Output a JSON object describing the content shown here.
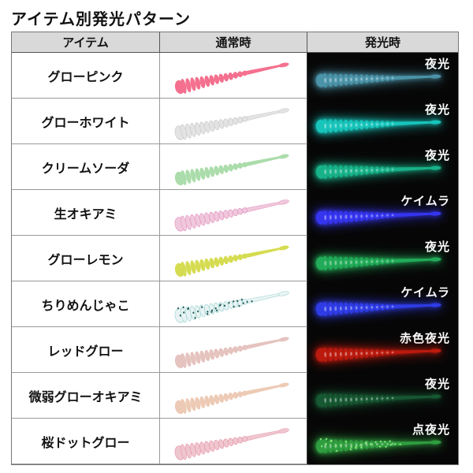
{
  "page": {
    "title": "アイテム別発光パターン",
    "background": "#ffffff"
  },
  "table": {
    "headers": [
      {
        "label": "アイテム"
      },
      {
        "label": "通常時"
      },
      {
        "label": "発光時"
      }
    ],
    "header_bg": "#d9d9d9",
    "glow_cell_bg": "#060606",
    "rows": [
      {
        "item": "グローピンク",
        "normal": {
          "color": "#f4708e"
        },
        "glow": {
          "color": "#4b93a8",
          "label": "夜光"
        }
      },
      {
        "item": "グローホワイト",
        "normal": {
          "color": "#e3e3e3",
          "stroke": "#cccccc"
        },
        "glow": {
          "color": "#18c5bb",
          "label": "夜光"
        }
      },
      {
        "item": "クリームソーダ",
        "normal": {
          "color": "#abdcab"
        },
        "glow": {
          "color": "#18b289",
          "label": "夜光"
        }
      },
      {
        "item": "生オキアミ",
        "normal": {
          "color": "#f0c8dc",
          "stroke": "#e598c4"
        },
        "glow": {
          "color": "#3535f0",
          "label": "ケイムラ"
        }
      },
      {
        "item": "グローレモン",
        "normal": {
          "color": "#d6dc51"
        },
        "glow": {
          "color": "#22ab58",
          "label": "夜光"
        }
      },
      {
        "item": "ちりめんじゃこ",
        "normal": {
          "color": "#e9f3f3",
          "stroke": "#9fd6d4",
          "speckles": "#275f5e"
        },
        "glow": {
          "color": "#2f3ce6",
          "label": "ケイムラ"
        }
      },
      {
        "item": "レッドグロー",
        "normal": {
          "color": "#e5c3be"
        },
        "glow": {
          "color": "#bb1a0e",
          "label": "赤色夜光"
        }
      },
      {
        "item": "微弱グローオキアミ",
        "normal": {
          "color": "#edcab5"
        },
        "glow": {
          "color": "#175732",
          "label": "夜光"
        }
      },
      {
        "item": "桜ドットグロー",
        "normal": {
          "color": "#f0c6ce",
          "stroke": "#e59aae"
        },
        "glow": {
          "color": "#2f9e3f",
          "speckles": "#8fe87f",
          "label": "点夜光"
        }
      }
    ]
  }
}
